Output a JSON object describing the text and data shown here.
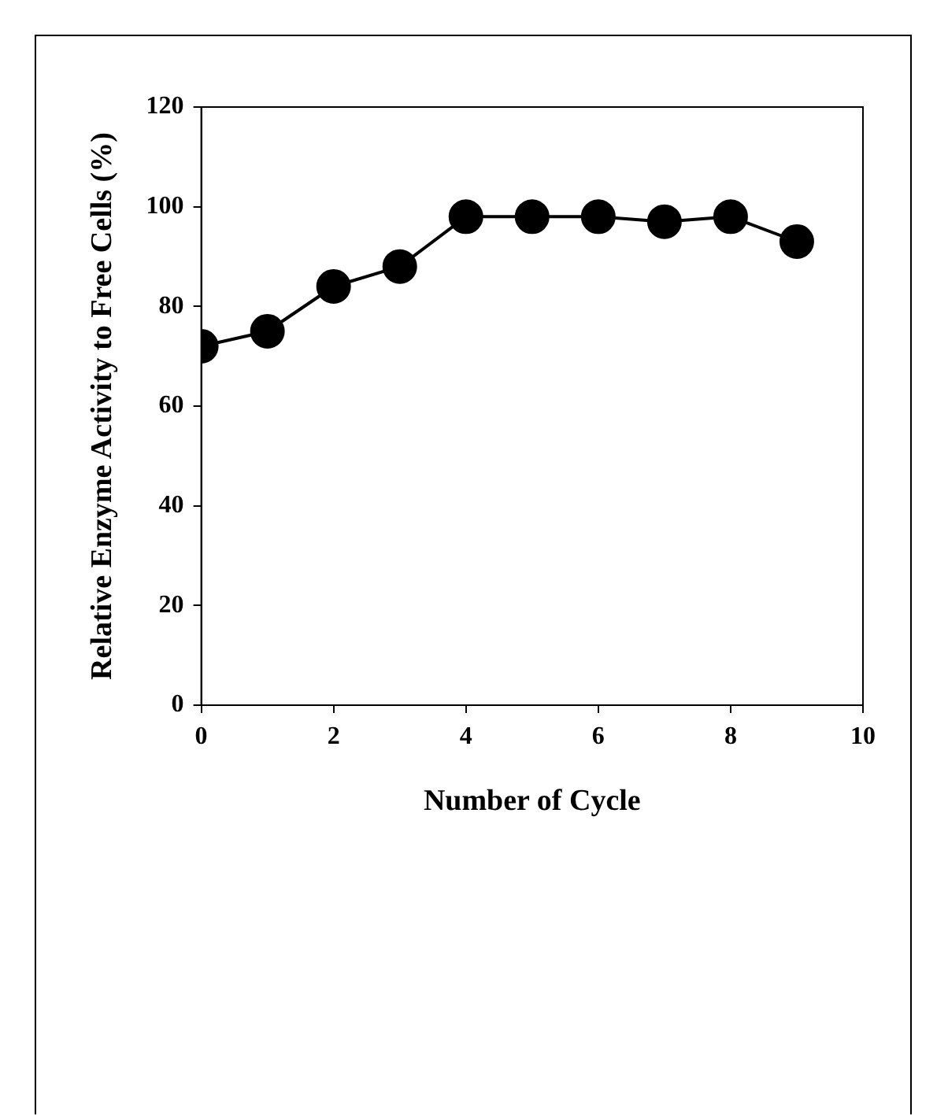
{
  "chart_data": {
    "type": "line",
    "xlabel": "Number of Cycle",
    "ylabel": "Relative Enzyme Activity to Free Cells (%)",
    "x": [
      0,
      1,
      2,
      3,
      4,
      5,
      6,
      7,
      8,
      9
    ],
    "series": [
      {
        "color": "#000000",
        "values": [
          72,
          75,
          84,
          88,
          98,
          98,
          98,
          97,
          98,
          93
        ]
      }
    ],
    "xlim": [
      0,
      10
    ],
    "xticks": [
      0,
      2,
      4,
      6,
      8,
      10
    ],
    "ylim": [
      0,
      120
    ],
    "yticks": [
      0,
      20,
      40,
      60,
      80,
      100,
      120
    ],
    "marker": "circle",
    "line_style": "solid",
    "grid": false,
    "legend": false
  }
}
